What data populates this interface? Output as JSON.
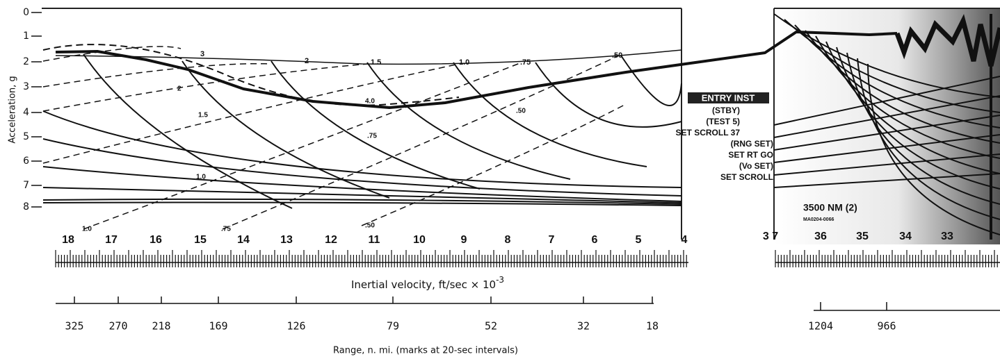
{
  "y_axis": {
    "label": "Acceleration, g",
    "ticks": [
      0,
      1,
      2,
      3,
      4,
      5,
      6,
      7,
      8
    ]
  },
  "velocity_axis": {
    "label": "Inertial velocity, ft/sec × 10",
    "exponent": "-3",
    "ticks": [
      18,
      17,
      16,
      15,
      14,
      13,
      12,
      11,
      10,
      9,
      8,
      7,
      6,
      5,
      4
    ]
  },
  "range_axis": {
    "label": "Range, n. mi. (marks at 20-sec intervals)",
    "ticks": [
      325,
      270,
      218,
      169,
      126,
      79,
      52,
      32,
      18
    ]
  },
  "solid_curve_labels": [
    "3",
    "2",
    "1.5",
    "1.0",
    ".75",
    ".50"
  ],
  "dashed_curve_labels": [
    "2",
    "1.5",
    "1.0",
    ".75",
    ".50",
    "4.0",
    "1.0",
    ".75",
    ".50"
  ],
  "instrument_notes": {
    "header": "ENTRY INST",
    "lines": [
      "(STBY)",
      "(TEST 5)",
      "SET SCROLL 37",
      "(RNG SET)",
      "SET RT GO",
      "(Vo SET)",
      "SET SCROLL"
    ]
  },
  "right_panel": {
    "velocity_ticks": [
      "3 7",
      "36",
      "35",
      "34",
      "33"
    ],
    "range_ticks": [
      1204,
      966
    ],
    "scroll_label": "3500 NM (2)",
    "photo_id": "MA0204-0066"
  }
}
